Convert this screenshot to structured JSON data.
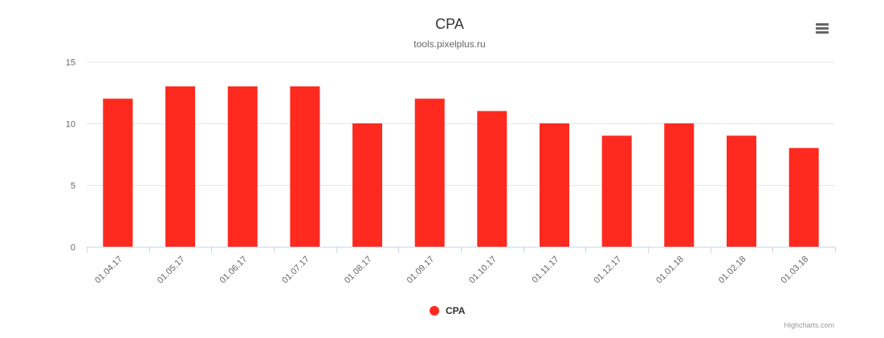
{
  "header": {
    "menu_icon": "hamburger-menu-icon"
  },
  "legend": {
    "label": "CPA",
    "color": "#ff2a1f"
  },
  "credits": {
    "label": "Highcharts.com"
  },
  "colors": {
    "bar": "#ff2a1f",
    "grid": "#e6e6e6",
    "axis_text": "#666666",
    "title": "#333333"
  },
  "chart_data": {
    "type": "bar",
    "title": "CPA",
    "subtitle": "tools.pixelplus.ru",
    "categories": [
      "01.04.17",
      "01.05.17",
      "01.06.17",
      "01.07.17",
      "01.08.17",
      "01.09.17",
      "01.10.17",
      "01.11.17",
      "01.12.17",
      "01.01.18",
      "01.02.18",
      "01.03.18"
    ],
    "series": [
      {
        "name": "CPA",
        "values": [
          12,
          13,
          13,
          13,
          10,
          12,
          11,
          10,
          9,
          10,
          9,
          8
        ]
      }
    ],
    "yticks": [
      "0",
      "5",
      "10",
      "15"
    ],
    "ylim": [
      0,
      15
    ],
    "grid": true,
    "legend_position": "bottom-center"
  }
}
